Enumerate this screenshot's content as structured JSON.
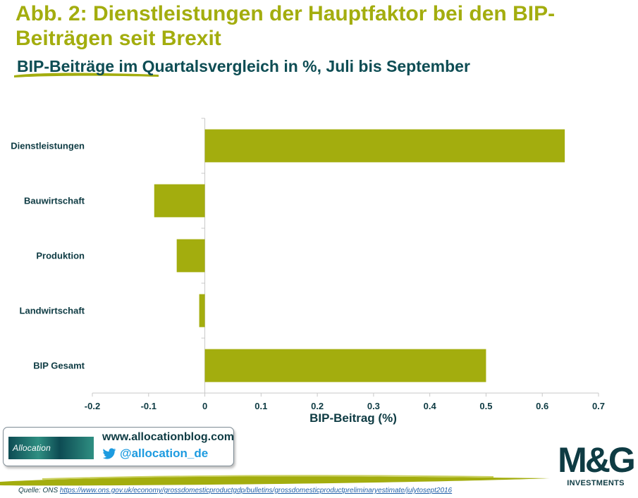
{
  "header": {
    "title": "Abb. 2: Dienstleistungen der Hauptfaktor bei den BIP-Beiträgen seit Brexit",
    "subtitle": "BIP-Beiträge im Quartalsvergleich in %, Juli bis September"
  },
  "chart_data": {
    "type": "bar",
    "orientation": "horizontal",
    "title": "BIP-Beiträge im Quartalsvergleich in %, Juli bis September",
    "categories": [
      "Dienstleistungen",
      "Bauwirtschaft",
      "Produktion",
      "Landwirtschaft",
      "BIP Gesamt"
    ],
    "values": [
      0.64,
      -0.09,
      -0.05,
      -0.01,
      0.5
    ],
    "xlabel": "BIP-Beitrag (%)",
    "ylabel": "",
    "xlim": [
      -0.2,
      0.7
    ],
    "xticks": [
      -0.2,
      -0.1,
      0,
      0.1,
      0.2,
      0.3,
      0.4,
      0.5,
      0.6,
      0.7
    ],
    "tick_labels": [
      "-0.2",
      "-0.1",
      "0",
      "0.1",
      "0.2",
      "0.3",
      "0.4",
      "0.5",
      "0.6",
      "0.7"
    ],
    "bar_color": "#a3ad0e",
    "grid": false,
    "legend": "none"
  },
  "promo": {
    "logo_text": "Allocation",
    "url": "www.allocationblog.com",
    "twitter_handle": "@allocation_de"
  },
  "brand": {
    "name": "M&G",
    "subtitle": "INVESTMENTS"
  },
  "footer": {
    "source_label": "Quelle: ONS",
    "source_link": "https://www.ons.gov.uk/economy/grossdomesticproductgdp/bulletins/grossdomesticproductpreliminaryestimate/julytosept2016"
  },
  "colors": {
    "accent": "#a3ad0e",
    "dark": "#0e3b43",
    "twitter": "#1d9be0"
  }
}
